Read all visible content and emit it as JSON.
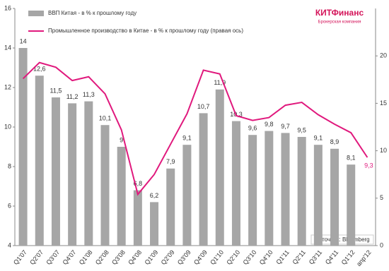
{
  "chart_data": {
    "type": "bar_line",
    "logo": {
      "name": "КИТФинанс",
      "tagline": "Брокерская компания"
    },
    "source": "Источник: Bloomberg",
    "categories": [
      "Q1'07",
      "Q2'07",
      "Q3'07",
      "Q4'07",
      "Q1'08",
      "Q2'08",
      "Q3'08",
      "Q4'08",
      "Q1'09",
      "Q2'09",
      "Q3'09",
      "Q4'09",
      "Q1'10",
      "Q2'10",
      "Q3'10",
      "Q4'10",
      "Q1'11",
      "Q2'11",
      "Q3'11",
      "Q4'11",
      "Q1'12",
      "апр'12"
    ],
    "series": [
      {
        "name": "ВВП Китая - в % к прошлому году",
        "color": "#a6a6a6",
        "kind": "bar",
        "values": [
          14,
          12.6,
          11.5,
          11.2,
          11.3,
          10.1,
          9,
          6.8,
          6.2,
          7.9,
          9.1,
          10.7,
          11.9,
          10.3,
          9.6,
          9.8,
          9.7,
          9.5,
          9.1,
          8.9,
          8.1,
          null
        ],
        "value_labels": [
          "14",
          "12,6",
          "11,5",
          "11,2",
          "11,3",
          "10,1",
          "9",
          "6,8",
          "6,2",
          "7,9",
          "9,1",
          "10,7",
          "11,9",
          "10,3",
          "9,6",
          "9,8",
          "9,7",
          "9,5",
          "9,1",
          "8,9",
          "8,1",
          null
        ]
      },
      {
        "name": "Промышленное производство в Китае - в % к прошлому году (правая ось)",
        "color": "#e0197d",
        "kind": "line",
        "axis": "y2",
        "values": [
          17.6,
          19.3,
          18.8,
          17.4,
          17.8,
          16.0,
          12.2,
          5.4,
          7.5,
          10.7,
          13.9,
          18.5,
          18.1,
          13.7,
          13.2,
          13.5,
          14.8,
          15.1,
          13.8,
          12.8,
          11.9,
          9.3
        ],
        "value_labels": [
          null,
          null,
          null,
          null,
          null,
          null,
          null,
          null,
          null,
          null,
          null,
          null,
          null,
          null,
          null,
          null,
          null,
          null,
          null,
          null,
          null,
          "9,3"
        ]
      }
    ],
    "ylim": [
      4,
      16
    ],
    "yticks": [
      4,
      6,
      8,
      10,
      12,
      14,
      16
    ],
    "y2lim": [
      0,
      25
    ],
    "y2ticks": [
      0,
      5,
      10,
      15,
      20
    ]
  }
}
